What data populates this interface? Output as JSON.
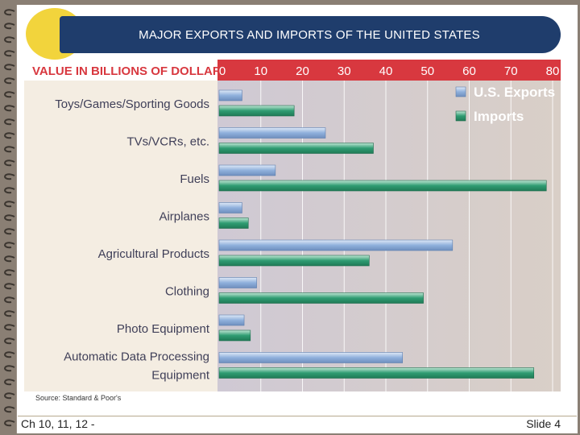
{
  "slide": {
    "title": "MAJOR EXPORTS AND IMPORTS OF THE UNITED STATES",
    "source": "Source: Standard & Poor's",
    "footer_left": "Ch 10, 11, 12 -",
    "footer_right": "Slide 4"
  },
  "colors": {
    "title_bar": "#1f3d6c",
    "title_oval": "#f2d43c",
    "header_band": "#d8383f",
    "exports": "#8fb0dc",
    "imports": "#2f9c72"
  },
  "chart_data": {
    "type": "bar",
    "orientation": "horizontal",
    "title": "VALUE IN BILLIONS OF DOLLARS",
    "categories": [
      "Toys/Games/Sporting Goods",
      "TVs/VCRs, etc.",
      "Fuels",
      "Airplanes",
      "Agricultural Products",
      "Clothing",
      "Photo Equipment",
      "Automatic Data Processing Equipment"
    ],
    "series": [
      {
        "name": "U.S. Exports",
        "values": [
          5.5,
          25.5,
          13.5,
          5.5,
          56,
          9,
          6,
          44
        ]
      },
      {
        "name": "Imports",
        "values": [
          18,
          37,
          78.5,
          7,
          36,
          49,
          7.5,
          75.5
        ]
      }
    ],
    "xlim": [
      0,
      80
    ],
    "xticks": [
      0,
      10,
      20,
      30,
      40,
      50,
      60,
      70,
      80
    ],
    "legend_position": "top-right",
    "grid": true
  }
}
